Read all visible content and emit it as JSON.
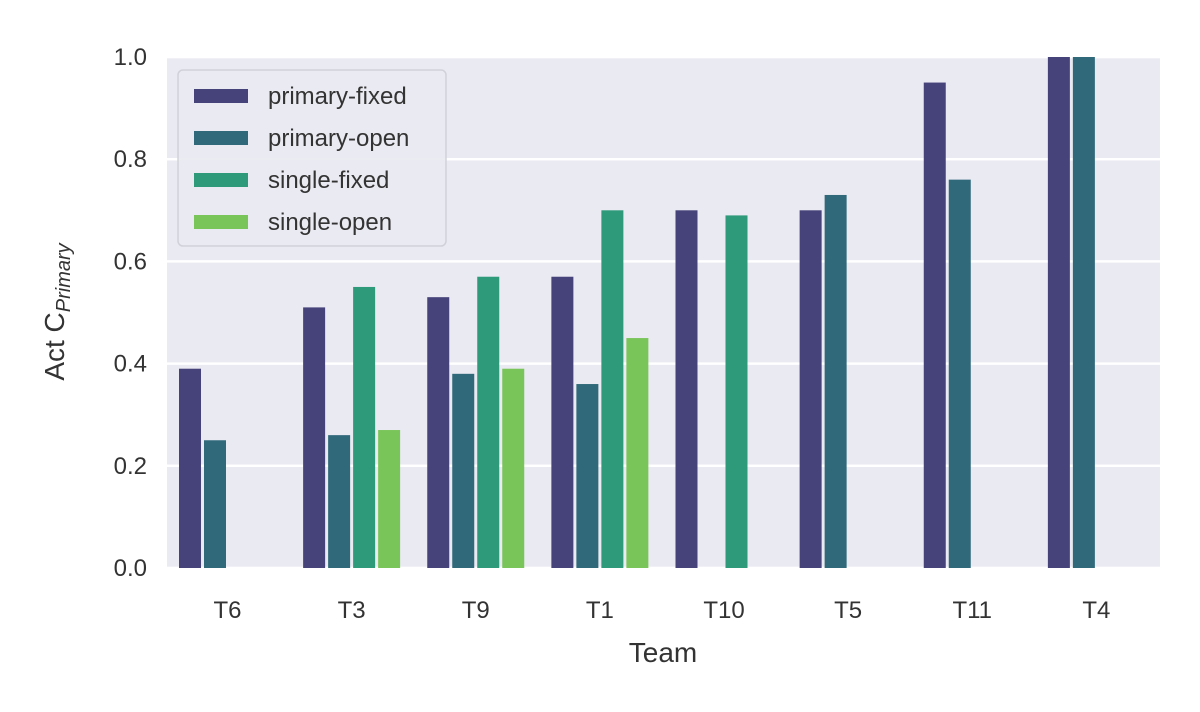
{
  "chart_data": {
    "type": "bar",
    "xlabel": "Team",
    "ylabel_prefix": "Act C",
    "ylabel_subscript": "Primary",
    "categories": [
      "T6",
      "T3",
      "T9",
      "T1",
      "T10",
      "T5",
      "T11",
      "T4"
    ],
    "ylim": [
      0,
      1.0
    ],
    "yticks": [
      "0.0",
      "0.2",
      "0.4",
      "0.6",
      "0.8",
      "1.0"
    ],
    "grid": true,
    "legend_position": "top-left",
    "series": [
      {
        "name": "primary-fixed",
        "color": "#46437a",
        "values": [
          0.39,
          0.51,
          0.53,
          0.57,
          0.7,
          0.7,
          0.95,
          1.0
        ]
      },
      {
        "name": "primary-open",
        "color": "#30697a",
        "values": [
          0.25,
          0.26,
          0.38,
          0.36,
          null,
          0.73,
          0.76,
          1.0
        ]
      },
      {
        "name": "single-fixed",
        "color": "#2e9a7a",
        "values": [
          null,
          0.55,
          0.57,
          0.7,
          0.69,
          null,
          null,
          null
        ]
      },
      {
        "name": "single-open",
        "color": "#7ac55a",
        "values": [
          null,
          0.27,
          0.39,
          0.45,
          null,
          null,
          null,
          null
        ]
      }
    ]
  }
}
